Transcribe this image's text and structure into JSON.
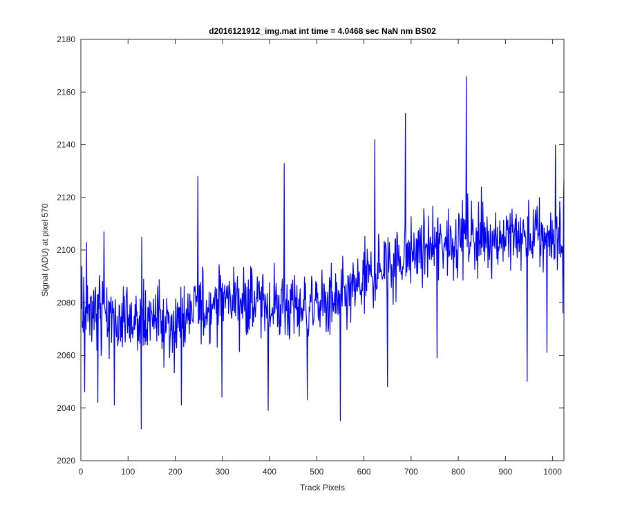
{
  "chart_data": {
    "type": "line",
    "title": "d2016121912_img.mat int time = 4.0468 sec  NaN nm BS02",
    "xlabel": "Track Pixels",
    "ylabel": "Signal (ADU) at pixel 570",
    "xlim": [
      0,
      1024
    ],
    "ylim": [
      2020,
      2180
    ],
    "xticks": [
      0,
      100,
      200,
      300,
      400,
      500,
      600,
      700,
      800,
      900,
      1000
    ],
    "yticks": [
      2020,
      2040,
      2060,
      2080,
      2100,
      2120,
      2140,
      2160,
      2180
    ],
    "grid": false,
    "series": [
      {
        "name": "signal",
        "color": "#0000ff",
        "x_start": 1,
        "x_step": 1,
        "count": 1024,
        "description": "noisy trace, mean rising from about 2075 to about 2105",
        "trend_anchors": [
          {
            "x": 1,
            "mean": 2076
          },
          {
            "x": 200,
            "mean": 2072
          },
          {
            "x": 300,
            "mean": 2082
          },
          {
            "x": 450,
            "mean": 2078
          },
          {
            "x": 550,
            "mean": 2080
          },
          {
            "x": 650,
            "mean": 2095
          },
          {
            "x": 800,
            "mean": 2105
          },
          {
            "x": 1024,
            "mean": 2105
          }
        ],
        "noise_sd": 11,
        "notable_points": [
          {
            "x": 2,
            "y": 2094
          },
          {
            "x": 8,
            "y": 2046
          },
          {
            "x": 12,
            "y": 2103
          },
          {
            "x": 36,
            "y": 2042
          },
          {
            "x": 49,
            "y": 2107
          },
          {
            "x": 71,
            "y": 2041
          },
          {
            "x": 128,
            "y": 2032
          },
          {
            "x": 129,
            "y": 2105
          },
          {
            "x": 213,
            "y": 2041
          },
          {
            "x": 248,
            "y": 2128
          },
          {
            "x": 299,
            "y": 2044
          },
          {
            "x": 397,
            "y": 2039
          },
          {
            "x": 431,
            "y": 2133
          },
          {
            "x": 480,
            "y": 2043
          },
          {
            "x": 550,
            "y": 2035
          },
          {
            "x": 623,
            "y": 2142
          },
          {
            "x": 650,
            "y": 2048
          },
          {
            "x": 688,
            "y": 2152
          },
          {
            "x": 755,
            "y": 2059
          },
          {
            "x": 817,
            "y": 2166
          },
          {
            "x": 946,
            "y": 2050
          },
          {
            "x": 988,
            "y": 2061
          },
          {
            "x": 1006,
            "y": 2140
          },
          {
            "x": 1022,
            "y": 2076
          },
          {
            "x": 1024,
            "y": 2127
          }
        ]
      }
    ]
  }
}
